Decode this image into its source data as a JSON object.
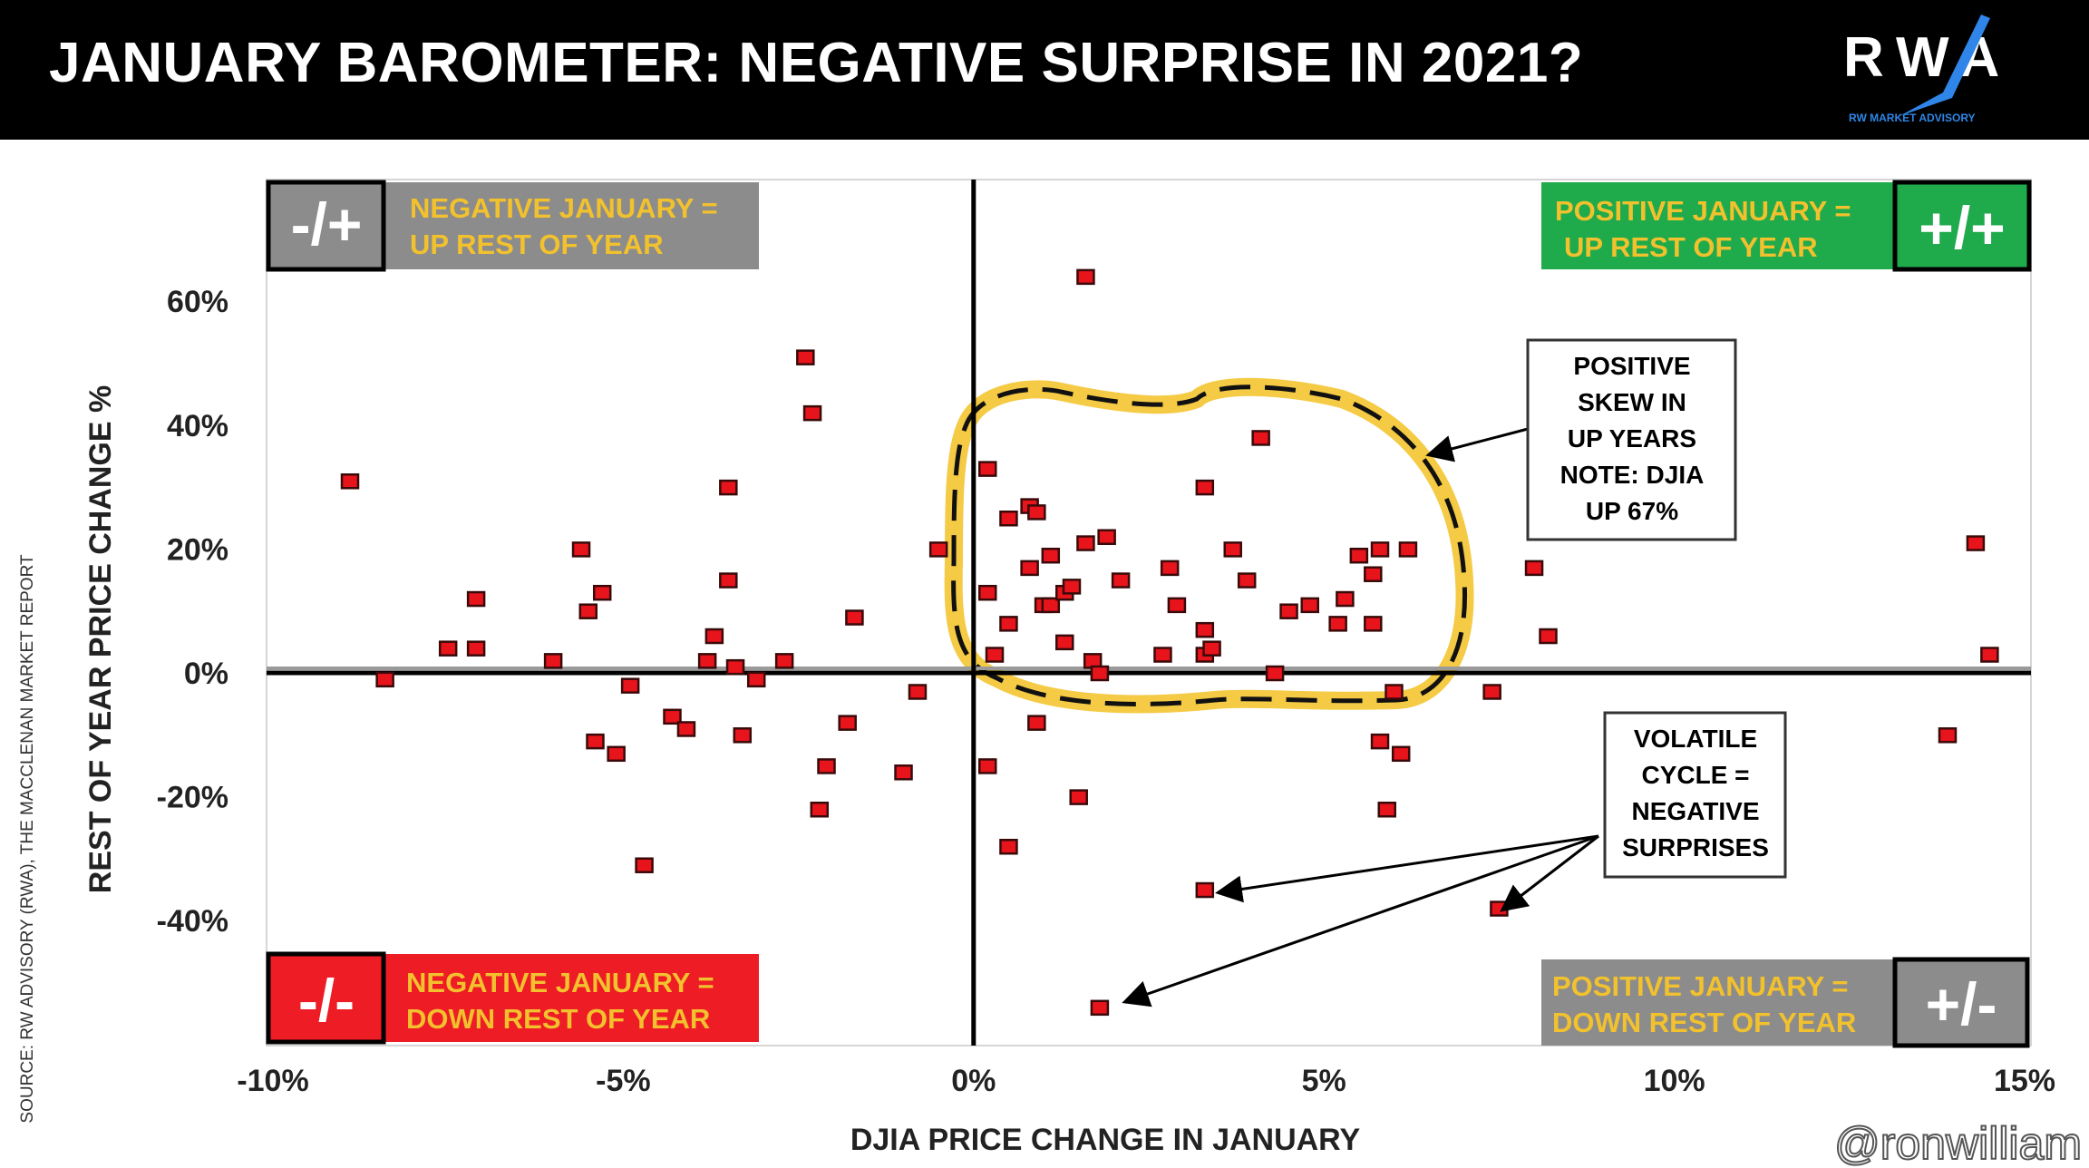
{
  "header": {
    "title": "JANUARY BAROMETER: NEGATIVE SURPRISE IN 2021?",
    "logo_text": "RWA",
    "logo_subtext": "RW MARKET ADVISORY",
    "logo_color": "#2f86e8"
  },
  "source": "SOURCE: RW ADVISORY (RWA), THE MACCLENAN MARKET REPORT",
  "watermark": "@ronwilliam",
  "quadrants": {
    "top_left": {
      "symbol": "-/+",
      "label_line1": "NEGATIVE JANUARY =",
      "label_line2": "UP REST OF YEAR",
      "color": "#8c8c8c",
      "text_color": "#f2c12e"
    },
    "top_right": {
      "symbol": "+/+",
      "label_line1": "POSITIVE JANUARY =",
      "label_line2": "UP REST OF YEAR",
      "color": "#1faa4b",
      "text_color": "#f2c12e"
    },
    "bottom_left": {
      "symbol": "-/-",
      "label_line1": "NEGATIVE JANUARY =",
      "label_line2": "DOWN REST OF YEAR",
      "color": "#ee1c24",
      "text_color": "#f2c12e"
    },
    "bottom_right": {
      "symbol": "+/-",
      "label_line1": "POSITIVE JANUARY =",
      "label_line2": "DOWN REST OF YEAR",
      "color": "#8c8c8c",
      "text_color": "#f2c12e"
    }
  },
  "annotations": {
    "skew": [
      "POSITIVE",
      "SKEW IN",
      "UP YEARS",
      "NOTE: DJIA",
      "UP 67%"
    ],
    "volatile": [
      "VOLATILE",
      "CYCLE =",
      "NEGATIVE",
      "SURPRISES"
    ],
    "highlight_color": "#f4c430"
  },
  "chart_data": {
    "type": "scatter",
    "title": "JANUARY BAROMETER: NEGATIVE SURPRISE IN 2021?",
    "xlabel": "DJIA PRICE CHANGE IN JANUARY",
    "ylabel": "REST OF YEAR PRICE CHANGE %",
    "xlim": [
      -10,
      15
    ],
    "ylim": [
      -60,
      80
    ],
    "x_ticks": [
      -10,
      -5,
      0,
      5,
      10,
      15
    ],
    "x_tick_labels": [
      "-10%",
      "-5%",
      "0%",
      "5%",
      "10%",
      "15%"
    ],
    "y_ticks": [
      60,
      40,
      20,
      0,
      -20,
      -40
    ],
    "y_tick_labels": [
      "60%",
      "40%",
      "20%",
      "0%",
      "-20%",
      "-40%"
    ],
    "grid": false,
    "marker_color": "#e8141c",
    "points": [
      [
        -8.9,
        31
      ],
      [
        -8.4,
        -1
      ],
      [
        -7.1,
        12
      ],
      [
        -7.5,
        4
      ],
      [
        -7.1,
        4
      ],
      [
        -6.0,
        2
      ],
      [
        -5.6,
        20
      ],
      [
        -5.5,
        10
      ],
      [
        -5.3,
        13
      ],
      [
        -5.4,
        -11
      ],
      [
        -5.1,
        -13
      ],
      [
        -4.9,
        -2
      ],
      [
        -4.7,
        -31
      ],
      [
        -4.3,
        -7
      ],
      [
        -4.1,
        -9
      ],
      [
        -3.8,
        2
      ],
      [
        -3.7,
        6
      ],
      [
        -3.5,
        30
      ],
      [
        -3.5,
        15
      ],
      [
        -3.4,
        1
      ],
      [
        -3.3,
        -10
      ],
      [
        -3.1,
        -1
      ],
      [
        -2.7,
        2
      ],
      [
        -2.4,
        51
      ],
      [
        -2.3,
        42
      ],
      [
        -2.2,
        -22
      ],
      [
        -2.1,
        -15
      ],
      [
        -1.8,
        -8
      ],
      [
        -1.7,
        9
      ],
      [
        -1.0,
        -16
      ],
      [
        -0.8,
        -3
      ],
      [
        -0.5,
        20
      ],
      [
        0.2,
        33
      ],
      [
        0.2,
        13
      ],
      [
        0.2,
        -15
      ],
      [
        0.3,
        3
      ],
      [
        0.5,
        -28
      ],
      [
        0.5,
        8
      ],
      [
        0.5,
        25
      ],
      [
        0.8,
        27
      ],
      [
        0.9,
        26
      ],
      [
        0.8,
        17
      ],
      [
        0.9,
        -8
      ],
      [
        1.0,
        11
      ],
      [
        1.1,
        19
      ],
      [
        1.1,
        11
      ],
      [
        1.3,
        5
      ],
      [
        1.3,
        13
      ],
      [
        1.4,
        14
      ],
      [
        1.5,
        -20
      ],
      [
        1.6,
        21
      ],
      [
        1.6,
        64
      ],
      [
        1.7,
        2
      ],
      [
        1.8,
        0
      ],
      [
        1.9,
        22
      ],
      [
        1.8,
        -54
      ],
      [
        2.1,
        15
      ],
      [
        2.7,
        3
      ],
      [
        2.8,
        17
      ],
      [
        2.9,
        11
      ],
      [
        3.3,
        -35
      ],
      [
        3.3,
        3
      ],
      [
        3.3,
        7
      ],
      [
        3.3,
        30
      ],
      [
        3.4,
        4
      ],
      [
        3.7,
        20
      ],
      [
        3.9,
        15
      ],
      [
        4.1,
        38
      ],
      [
        4.3,
        0
      ],
      [
        4.5,
        10
      ],
      [
        4.8,
        11
      ],
      [
        5.2,
        8
      ],
      [
        5.3,
        12
      ],
      [
        5.5,
        19
      ],
      [
        5.7,
        16
      ],
      [
        5.7,
        8
      ],
      [
        5.8,
        20
      ],
      [
        5.8,
        -11
      ],
      [
        5.9,
        -22
      ],
      [
        6.0,
        -3
      ],
      [
        6.1,
        -13
      ],
      [
        6.2,
        20
      ],
      [
        7.4,
        -3
      ],
      [
        7.5,
        -38
      ],
      [
        8.0,
        17
      ],
      [
        8.2,
        6
      ],
      [
        13.9,
        -10
      ],
      [
        14.3,
        21
      ],
      [
        14.5,
        3
      ]
    ]
  }
}
